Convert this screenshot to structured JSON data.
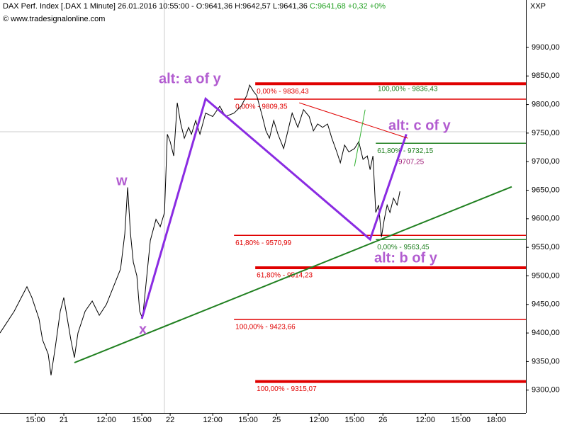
{
  "header": {
    "title": "DAX Perf. Index [.DAX  1 Minute] 26.01.2016 10:55:00 - O:9641,36 H:9642,57 L:9641,36",
    "close": "C:9641,68 +0,32 +0%",
    "source": "© www.tradesignalonline.com",
    "corner": "XXP"
  },
  "chart_data": {
    "type": "line",
    "color": "#000000",
    "x": [
      0,
      0.6,
      1.2,
      1.8,
      2.28,
      2.7,
      3.3,
      3.6,
      4.08,
      4.32,
      4.68,
      5.1,
      5.4,
      5.7,
      6,
      6.3,
      6.6,
      7.2,
      7.8,
      8.4,
      9,
      9.6,
      10.2,
      10.56,
      10.8,
      11.04,
      11.28,
      11.58,
      11.82,
      12.06,
      12.36,
      12.72,
      13.2,
      13.56,
      13.92,
      14.16,
      14.4,
      14.7,
      15,
      15.3,
      15.6,
      15.96,
      16.2,
      16.56,
      16.92,
      17.4,
      18,
      18.6,
      19.08,
      19.8,
      20.4,
      20.88,
      21.12,
      21.48,
      21.72,
      22.2,
      22.5,
      22.8,
      23.16,
      23.52,
      24,
      24.36,
      24.72,
      25.2,
      25.68,
      26.16,
      26.52,
      26.88,
      27.3,
      27.72,
      28.08,
      28.5,
      28.8,
      29.16,
      29.52,
      30,
      30.36,
      30.72,
      31.08,
      31.32,
      31.56,
      31.8,
      32.04,
      32.28,
      32.52,
      32.76,
      33,
      33.3,
      33.6,
      33.84
    ],
    "values": [
      9400,
      9419,
      9438,
      9462,
      9481,
      9462,
      9425,
      9388,
      9363,
      9326,
      9375,
      9438,
      9462,
      9425,
      9388,
      9357,
      9400,
      9438,
      9456,
      9431,
      9450,
      9481,
      9512,
      9574,
      9655,
      9574,
      9524,
      9500,
      9438,
      9425,
      9487,
      9562,
      9599,
      9586,
      9611,
      9748,
      9735,
      9710,
      9803,
      9766,
      9741,
      9760,
      9748,
      9772,
      9748,
      9785,
      9779,
      9797,
      9779,
      9785,
      9797,
      9816,
      9834,
      9822,
      9816,
      9779,
      9754,
      9741,
      9772,
      9748,
      9723,
      9754,
      9785,
      9760,
      9791,
      9779,
      9754,
      9766,
      9760,
      9766,
      9741,
      9717,
      9698,
      9729,
      9717,
      9723,
      9735,
      9704,
      9710,
      9686,
      9710,
      9611,
      9624,
      9568,
      9599,
      9624,
      9611,
      9636,
      9624,
      9648
    ],
    "xlim": [
      0,
      44.5
    ],
    "xticks": [
      {
        "value": 3,
        "label": "15:00"
      },
      {
        "value": 5.4,
        "label": "21"
      },
      {
        "value": 9,
        "label": "12:00"
      },
      {
        "value": 12,
        "label": "15:00"
      },
      {
        "value": 14.4,
        "label": "22"
      },
      {
        "value": 18,
        "label": "12:00"
      },
      {
        "value": 21,
        "label": "15:00"
      },
      {
        "value": 23.4,
        "label": "25"
      },
      {
        "value": 27,
        "label": "12:00"
      },
      {
        "value": 30,
        "label": "15:00"
      },
      {
        "value": 32.4,
        "label": "26"
      },
      {
        "value": 36,
        "label": "12:00"
      },
      {
        "value": 39,
        "label": "15:00"
      },
      {
        "value": 42,
        "label": "18:00"
      }
    ],
    "ylim": [
      9260,
      9983
    ],
    "yticks": [
      {
        "value": 9300,
        "label": "9300,00"
      },
      {
        "value": 9350,
        "label": "9350,00"
      },
      {
        "value": 9400,
        "label": "9400,00"
      },
      {
        "value": 9450,
        "label": "9450,00"
      },
      {
        "value": 9500,
        "label": "9500,00"
      },
      {
        "value": 9550,
        "label": "9550,00"
      },
      {
        "value": 9600,
        "label": "9600,00"
      },
      {
        "value": 9650,
        "label": "9650,00"
      },
      {
        "value": 9700,
        "label": "9700,00"
      },
      {
        "value": 9750,
        "label": "9750,00"
      },
      {
        "value": 9800,
        "label": "9800,00"
      },
      {
        "value": 9850,
        "label": "9850,00"
      },
      {
        "value": 9900,
        "label": "9900,00"
      }
    ],
    "levels": [
      {
        "value": 9836.43,
        "from": 21.6,
        "color": "#e00000",
        "thick": true,
        "label": "0,00% - 9836,43"
      },
      {
        "value": 9809.35,
        "from": 19.8,
        "color": "#e00000",
        "thick": false,
        "label": "0,00% - 9809,35"
      },
      {
        "value": 9732.15,
        "from": 31.8,
        "color": "#208020",
        "thick": false,
        "label": "61,80% - 9732,15"
      },
      {
        "value": 9570.99,
        "from": 19.8,
        "color": "#e00000",
        "thick": false,
        "label": "61,80% - 9570,99"
      },
      {
        "value": 9563.45,
        "from": 31.8,
        "color": "#208020",
        "thick": false,
        "label": "0,00% - 9563,45"
      },
      {
        "value": 9514.23,
        "from": 21.6,
        "color": "#e00000",
        "thick": true,
        "label": "61,80% - 9514,23"
      },
      {
        "value": 9423.66,
        "from": 19.8,
        "color": "#e00000",
        "thick": false,
        "label": "100,00% - 9423,66"
      },
      {
        "value": 9315.07,
        "from": 21.6,
        "color": "#e00000",
        "thick": true,
        "label": "100,00% - 9315,07"
      }
    ],
    "level_note": "100,00% - 9836,43",
    "price_note": "9707,25",
    "lines": [
      {
        "color": "#8a2be2",
        "width": 3,
        "x": [
          12,
          17.4,
          31.32,
          34.38
        ],
        "values": [
          9425,
          9810,
          9564,
          9748
        ]
      },
      {
        "color": "#208020",
        "width": 2,
        "x": [
          6.3,
          43.3
        ],
        "values": [
          9348,
          9656
        ]
      },
      {
        "color": "#e00000",
        "width": 1,
        "x": [
          25.32,
          34.5
        ],
        "values": [
          9803,
          9741
        ]
      },
      {
        "color": "#30b030",
        "width": 1,
        "x": [
          30,
          30.9
        ],
        "values": [
          9692,
          9791
        ]
      }
    ],
    "waves": [
      "w",
      "x",
      "alt: a of y",
      "alt: c of y",
      "alt: b of y"
    ]
  }
}
